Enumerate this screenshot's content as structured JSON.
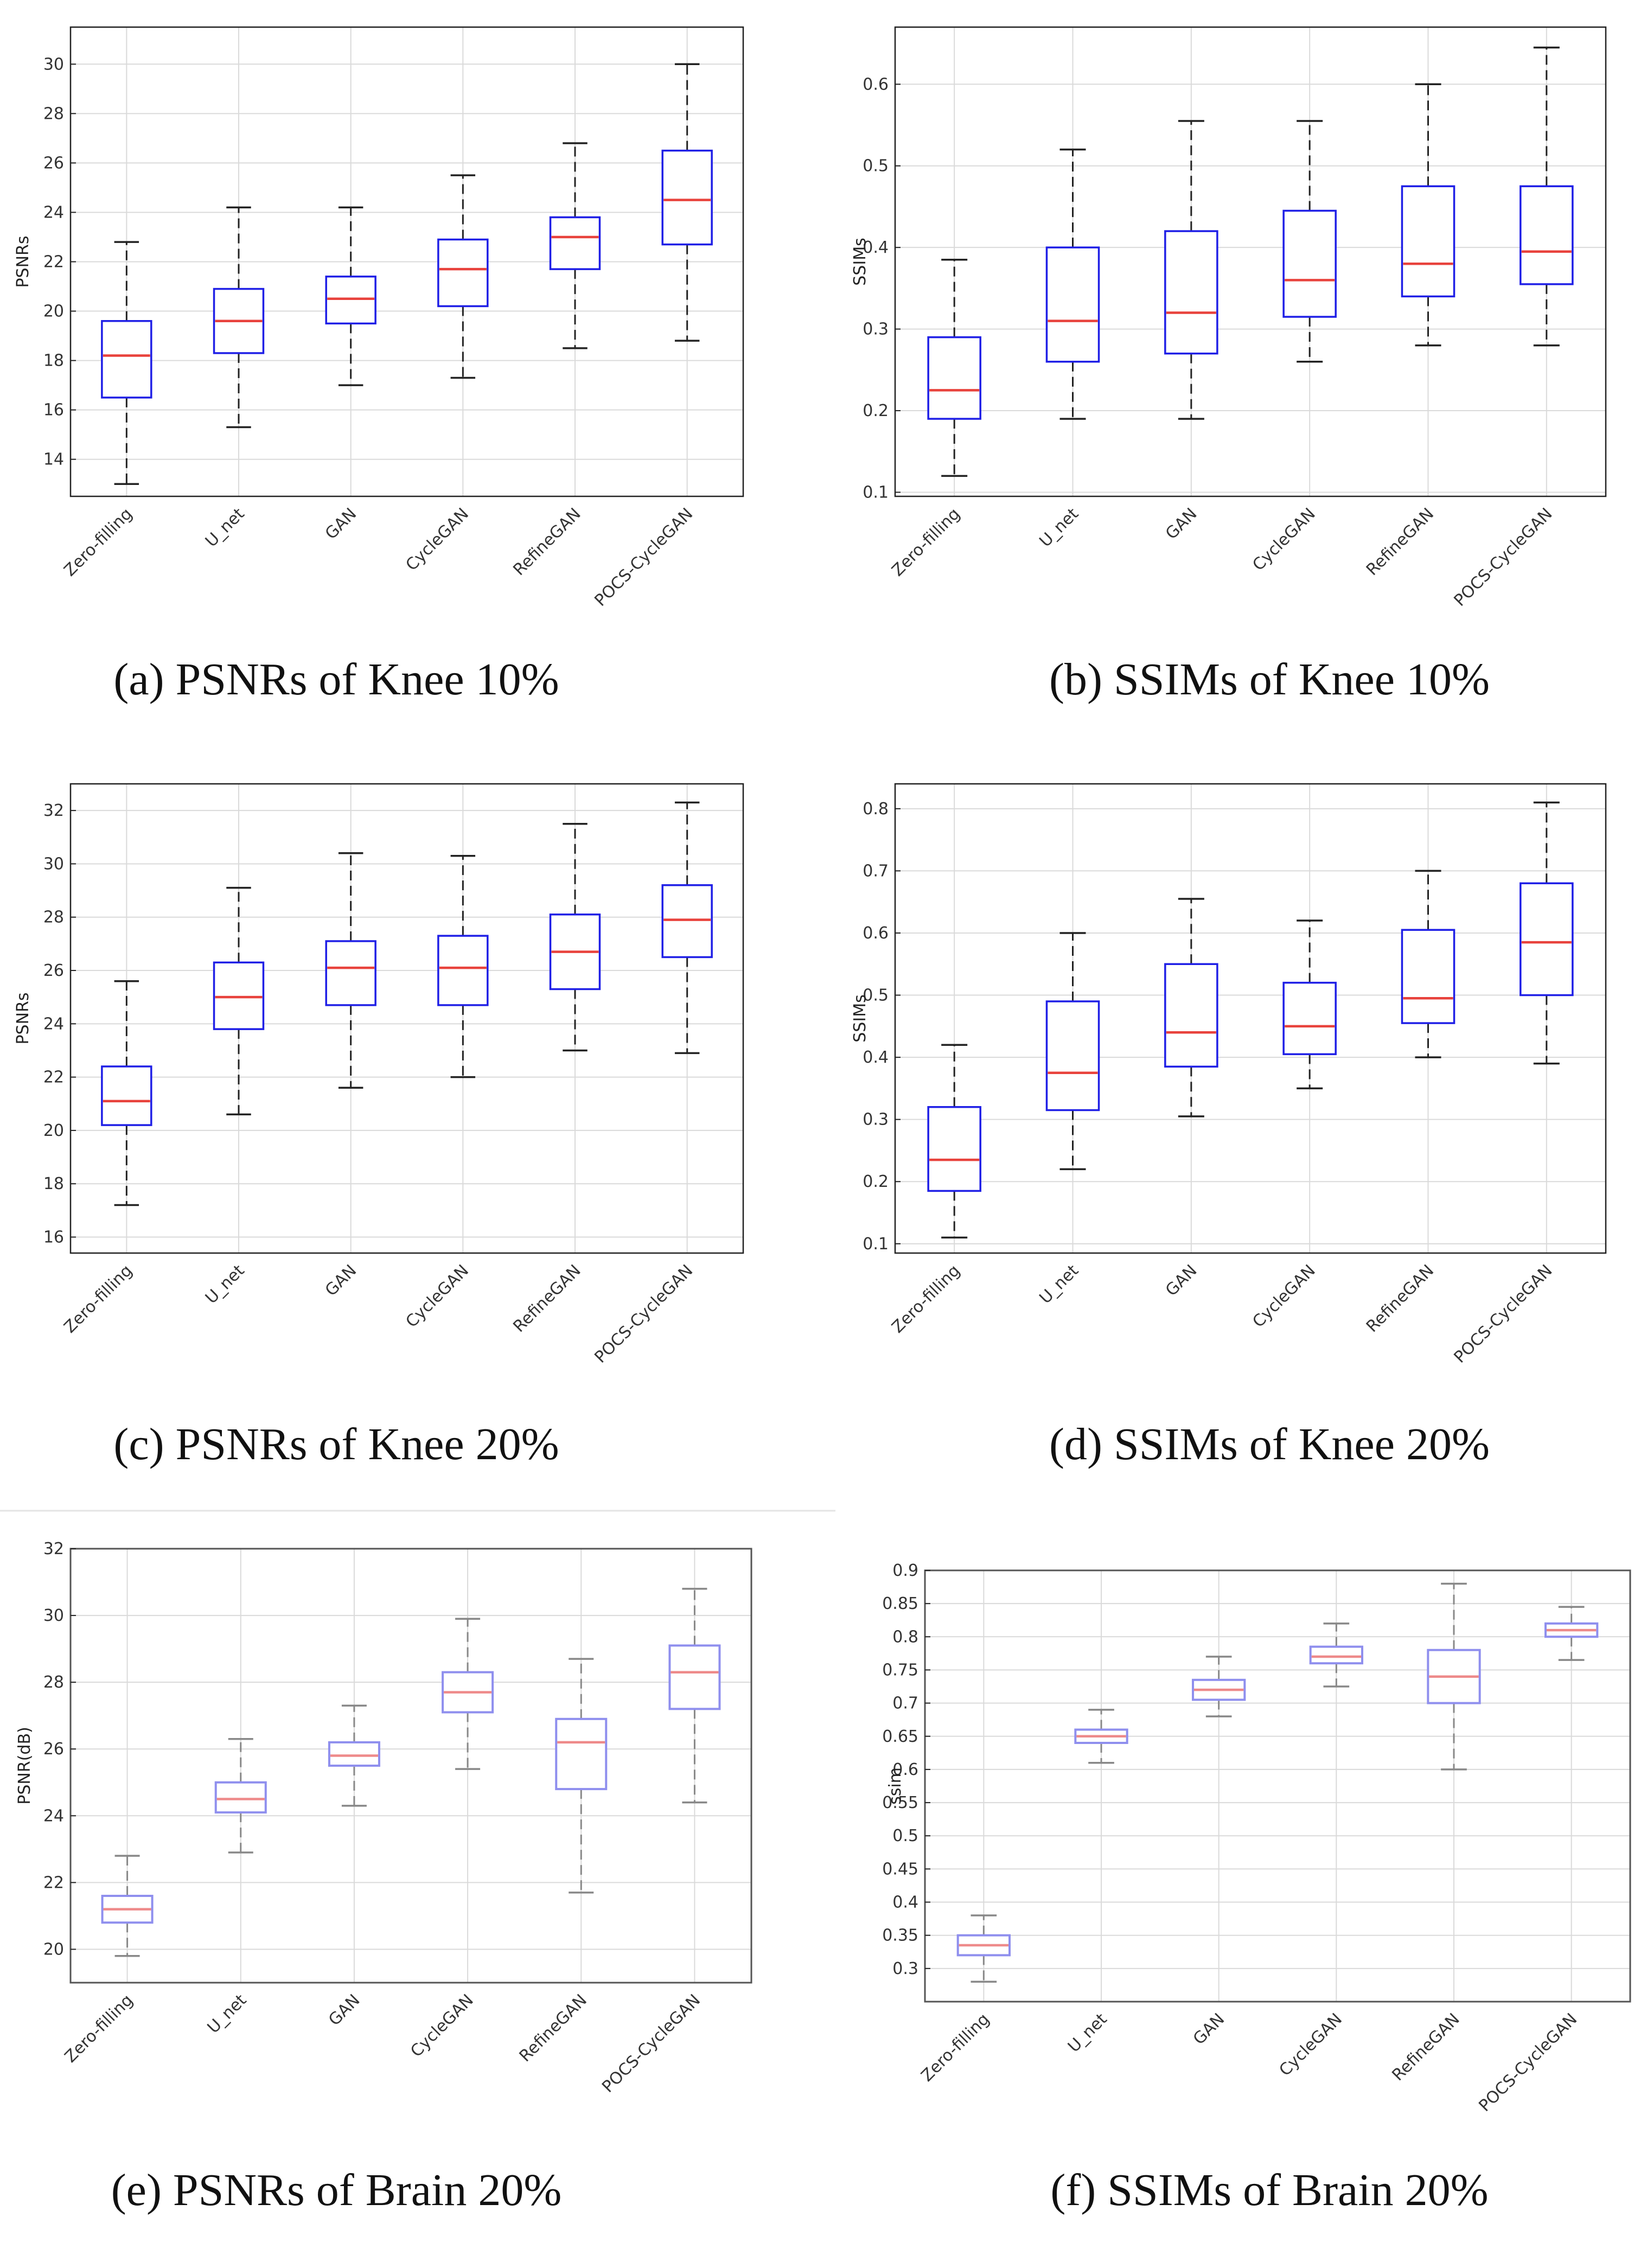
{
  "figure": {
    "chart_data": [
      {
        "id": "a",
        "type": "box",
        "caption": "(a) PSNRs of Knee 10%",
        "ylabel": "PSNRs",
        "ylim": [
          12.5,
          31.5
        ],
        "yticks": [
          14,
          16,
          18,
          20,
          22,
          24,
          26,
          28,
          30
        ],
        "grid": true,
        "categories": [
          "Zero-filling",
          "U_net",
          "GAN",
          "CycleGAN",
          "RefineGAN",
          "POCS-CycleGAN"
        ],
        "boxes": [
          {
            "min": 13.0,
            "q1": 16.5,
            "median": 18.2,
            "q3": 19.6,
            "max": 22.8
          },
          {
            "min": 15.3,
            "q1": 18.3,
            "median": 19.6,
            "q3": 20.9,
            "max": 24.2
          },
          {
            "min": 17.0,
            "q1": 19.5,
            "median": 20.5,
            "q3": 21.4,
            "max": 24.2
          },
          {
            "min": 17.3,
            "q1": 20.2,
            "median": 21.7,
            "q3": 22.9,
            "max": 25.5
          },
          {
            "min": 18.5,
            "q1": 21.7,
            "median": 23.0,
            "q3": 23.8,
            "max": 26.8
          },
          {
            "min": 18.8,
            "q1": 22.7,
            "median": 24.5,
            "q3": 26.5,
            "max": 30.0
          }
        ]
      },
      {
        "id": "b",
        "type": "box",
        "caption": "(b) SSIMs of Knee 10%",
        "ylabel": "SSIMs",
        "ylim": [
          0.095,
          0.67
        ],
        "yticks": [
          "0.1",
          "0.2",
          "0.3",
          "0.4",
          "0.5",
          "0.6"
        ],
        "grid": true,
        "categories": [
          "Zero-filling",
          "U_net",
          "GAN",
          "CycleGAN",
          "RefineGAN",
          "POCS-CycleGAN"
        ],
        "boxes": [
          {
            "min": 0.12,
            "q1": 0.19,
            "median": 0.225,
            "q3": 0.29,
            "max": 0.385
          },
          {
            "min": 0.19,
            "q1": 0.26,
            "median": 0.31,
            "q3": 0.4,
            "max": 0.52
          },
          {
            "min": 0.19,
            "q1": 0.27,
            "median": 0.32,
            "q3": 0.42,
            "max": 0.555
          },
          {
            "min": 0.26,
            "q1": 0.315,
            "median": 0.36,
            "q3": 0.445,
            "max": 0.555
          },
          {
            "min": 0.28,
            "q1": 0.34,
            "median": 0.38,
            "q3": 0.475,
            "max": 0.6
          },
          {
            "min": 0.28,
            "q1": 0.355,
            "median": 0.395,
            "q3": 0.475,
            "max": 0.645
          }
        ]
      },
      {
        "id": "c",
        "type": "box",
        "caption": "(c) PSNRs of Knee 20%",
        "ylabel": "PSNRs",
        "ylim": [
          15.4,
          33.0
        ],
        "yticks": [
          16,
          18,
          20,
          22,
          24,
          26,
          28,
          30,
          32
        ],
        "grid": true,
        "categories": [
          "Zero-filling",
          "U_net",
          "GAN",
          "CycleGAN",
          "RefineGAN",
          "POCS-CycleGAN"
        ],
        "boxes": [
          {
            "min": 17.2,
            "q1": 20.2,
            "median": 21.1,
            "q3": 22.4,
            "max": 25.6
          },
          {
            "min": 20.6,
            "q1": 23.8,
            "median": 25.0,
            "q3": 26.3,
            "max": 29.1
          },
          {
            "min": 21.6,
            "q1": 24.7,
            "median": 26.1,
            "q3": 27.1,
            "max": 30.4
          },
          {
            "min": 22.0,
            "q1": 24.7,
            "median": 26.1,
            "q3": 27.3,
            "max": 30.3
          },
          {
            "min": 23.0,
            "q1": 25.3,
            "median": 26.7,
            "q3": 28.1,
            "max": 31.5
          },
          {
            "min": 22.9,
            "q1": 26.5,
            "median": 27.9,
            "q3": 29.2,
            "max": 32.3
          }
        ]
      },
      {
        "id": "d",
        "type": "box",
        "caption": "(d) SSIMs of Knee 20%",
        "ylabel": "SSIMs",
        "ylim": [
          0.085,
          0.84
        ],
        "yticks": [
          "0.1",
          "0.2",
          "0.3",
          "0.4",
          "0.5",
          "0.6",
          "0.7",
          "0.8"
        ],
        "grid": true,
        "categories": [
          "Zero-filling",
          "U_net",
          "GAN",
          "CycleGAN",
          "RefineGAN",
          "POCS-CycleGAN"
        ],
        "boxes": [
          {
            "min": 0.11,
            "q1": 0.185,
            "median": 0.235,
            "q3": 0.32,
            "max": 0.42
          },
          {
            "min": 0.22,
            "q1": 0.315,
            "median": 0.375,
            "q3": 0.49,
            "max": 0.6
          },
          {
            "min": 0.305,
            "q1": 0.385,
            "median": 0.44,
            "q3": 0.55,
            "max": 0.655
          },
          {
            "min": 0.35,
            "q1": 0.405,
            "median": 0.45,
            "q3": 0.52,
            "max": 0.62
          },
          {
            "min": 0.4,
            "q1": 0.455,
            "median": 0.495,
            "q3": 0.605,
            "max": 0.7
          },
          {
            "min": 0.39,
            "q1": 0.5,
            "median": 0.585,
            "q3": 0.68,
            "max": 0.81
          }
        ]
      },
      {
        "id": "e",
        "type": "box",
        "caption": "(e) PSNRs of Brain 20%",
        "ylabel": "PSNR(dB)",
        "ylim": [
          19.0,
          32.0
        ],
        "yticks": [
          20,
          22,
          24,
          26,
          28,
          30,
          32
        ],
        "grid": true,
        "categories": [
          "Zero-filling",
          "U_net",
          "GAN",
          "CycleGAN",
          "RefineGAN",
          "POCS-CycleGAN"
        ],
        "boxes": [
          {
            "min": 19.8,
            "q1": 20.8,
            "median": 21.2,
            "q3": 21.6,
            "max": 22.8
          },
          {
            "min": 22.9,
            "q1": 24.1,
            "median": 24.5,
            "q3": 25.0,
            "max": 26.3
          },
          {
            "min": 24.3,
            "q1": 25.5,
            "median": 25.8,
            "q3": 26.2,
            "max": 27.3
          },
          {
            "min": 25.4,
            "q1": 27.1,
            "median": 27.7,
            "q3": 28.3,
            "max": 29.9
          },
          {
            "min": 21.7,
            "q1": 24.8,
            "median": 26.2,
            "q3": 26.9,
            "max": 28.7
          },
          {
            "min": 24.4,
            "q1": 27.2,
            "median": 28.3,
            "q3": 29.1,
            "max": 30.8
          }
        ]
      },
      {
        "id": "f",
        "type": "box",
        "caption": "(f) SSIMs of Brain 20%",
        "ylabel": "ssim",
        "ylim": [
          0.25,
          0.9
        ],
        "yticks": [
          "0.3",
          "0.35",
          "0.4",
          "0.45",
          "0.5",
          "0.55",
          "0.6",
          "0.65",
          "0.7",
          "0.75",
          "0.8",
          "0.85",
          "0.9"
        ],
        "grid": true,
        "categories": [
          "Zero-filling",
          "U_net",
          "GAN",
          "CycleGAN",
          "RefineGAN",
          "POCS-CycleGAN"
        ],
        "boxes": [
          {
            "min": 0.28,
            "q1": 0.32,
            "median": 0.335,
            "q3": 0.35,
            "max": 0.38
          },
          {
            "min": 0.61,
            "q1": 0.64,
            "median": 0.65,
            "q3": 0.66,
            "max": 0.69
          },
          {
            "min": 0.68,
            "q1": 0.705,
            "median": 0.72,
            "q3": 0.735,
            "max": 0.77
          },
          {
            "min": 0.725,
            "q1": 0.76,
            "median": 0.77,
            "q3": 0.785,
            "max": 0.82
          },
          {
            "min": 0.6,
            "q1": 0.7,
            "median": 0.74,
            "q3": 0.78,
            "max": 0.88
          },
          {
            "min": 0.765,
            "q1": 0.8,
            "median": 0.81,
            "q3": 0.82,
            "max": 0.845
          }
        ]
      }
    ],
    "colors": {
      "box_edge": "#1f1fe6",
      "box_edge_light": "#8f8fee",
      "median": "#e8423c",
      "median_light": "#ee8a8a",
      "whisker": "#222222",
      "whisker_light": "#888888",
      "grid": "#dadada",
      "axis": "#222222"
    }
  }
}
